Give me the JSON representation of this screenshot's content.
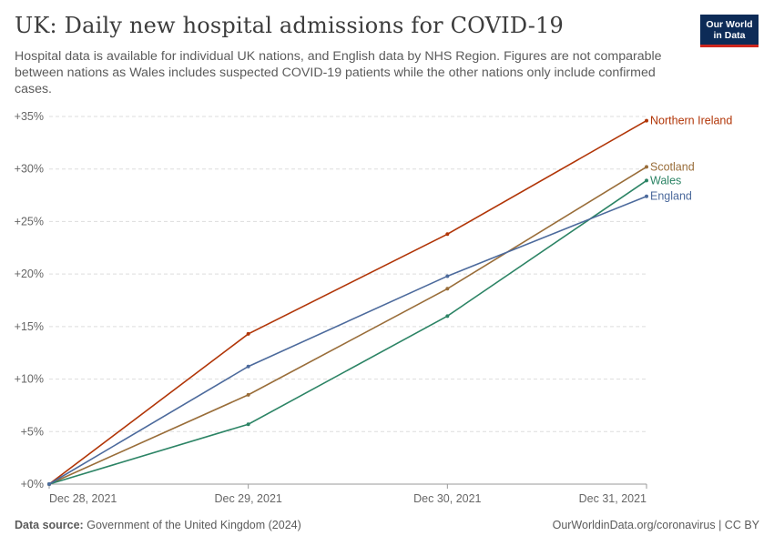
{
  "header": {
    "title": "UK: Daily new hospital admissions for COVID-19",
    "subtitle": "Hospital data is available for individual UK nations, and English data by NHS Region. Figures are not comparable between nations as Wales includes suspected COVID-19 patients while the other nations only include confirmed cases.",
    "logo_line1": "Our World",
    "logo_line2": "in Data"
  },
  "footer": {
    "source_label": "Data source:",
    "source_text": "Government of the United Kingdom (2024)",
    "link_text": "OurWorldinData.org/coronavirus | CC BY"
  },
  "chart_data": {
    "type": "line",
    "title": "UK: Daily new hospital admissions for COVID-19",
    "x": [
      "Dec 28, 2021",
      "Dec 29, 2021",
      "Dec 30, 2021",
      "Dec 31, 2021"
    ],
    "ylim": [
      0,
      35
    ],
    "yticks": [
      0,
      5,
      10,
      15,
      20,
      25,
      30,
      35
    ],
    "ytick_labels": [
      "+0%",
      "+5%",
      "+10%",
      "+15%",
      "+20%",
      "+25%",
      "+30%",
      "+35%"
    ],
    "grid": true,
    "series": [
      {
        "name": "Northern Ireland",
        "color": "#b13507",
        "values": [
          0,
          14.3,
          23.8,
          34.6
        ]
      },
      {
        "name": "Scotland",
        "color": "#996d39",
        "values": [
          0,
          8.5,
          18.6,
          30.2
        ]
      },
      {
        "name": "Wales",
        "color": "#2c8465",
        "values": [
          0,
          5.7,
          16.0,
          28.9
        ]
      },
      {
        "name": "England",
        "color": "#4c6a9c",
        "values": [
          0,
          11.2,
          19.8,
          27.4
        ]
      }
    ]
  }
}
